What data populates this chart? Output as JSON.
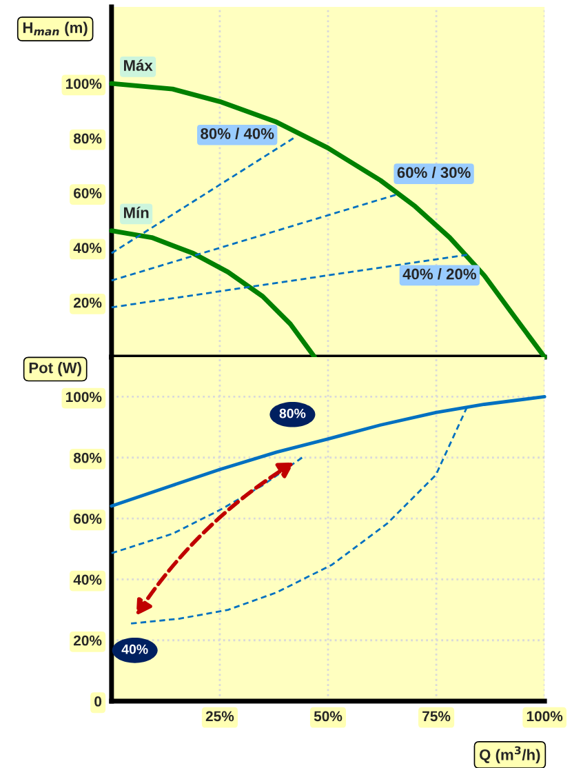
{
  "chart_data": [
    {
      "type": "line",
      "ylabel": "H$_{man}$ (m)",
      "xlim": [
        0,
        100
      ],
      "ylim": [
        0,
        128
      ],
      "xticks": [
        {
          "value": 25,
          "label": null
        },
        {
          "value": 50,
          "label": null
        },
        {
          "value": 75,
          "label": null
        },
        {
          "value": 100,
          "label": null
        }
      ],
      "yticks": [
        {
          "value": 20,
          "label": "20%"
        },
        {
          "value": 40,
          "label": "40%"
        },
        {
          "value": 60,
          "label": "60%"
        },
        {
          "value": 80,
          "label": "80%"
        },
        {
          "value": 100,
          "label": "100%"
        }
      ],
      "tick_labels": "y",
      "grid": "x",
      "marker": "none",
      "series": [
        {
          "name": "Máx",
          "color": "#008000",
          "line_style": "solid",
          "x": [
            0,
            14.1,
            25,
            38.1,
            49.9,
            62.1,
            70.1,
            78.1,
            86.1,
            92.5,
            100
          ],
          "values": [
            100,
            98,
            93.4,
            85.9,
            76.5,
            64.6,
            55.1,
            43.7,
            29.8,
            16,
            0
          ]
        },
        {
          "name": "Mín",
          "color": "#008000",
          "line_style": "solid",
          "x": [
            0,
            9.3,
            18.9,
            26.9,
            34.9,
            41.3,
            46.9
          ],
          "values": [
            46.2,
            43.7,
            37.9,
            31.1,
            22.2,
            12.1,
            0
          ]
        },
        {
          "name": "80% / 40%",
          "color": "#0070c0",
          "line_style": "dashed",
          "x": [
            0,
            42
          ],
          "values": [
            38,
            80
          ]
        },
        {
          "name": "60% / 30%",
          "color": "#0070c0",
          "line_style": "dashed",
          "x": [
            0,
            65.6
          ],
          "values": [
            28,
            59.3
          ]
        },
        {
          "name": "40% / 20%",
          "color": "#0070c0",
          "line_style": "dashed",
          "x": [
            0,
            82.1
          ],
          "values": [
            18.2,
            37.4
          ]
        }
      ]
    },
    {
      "type": "line",
      "ylabel": "Pot (W)",
      "xlabel": "Q (m$^{3}$/h)",
      "xlim": [
        0,
        100
      ],
      "ylim": [
        0,
        113
      ],
      "xticks": [
        {
          "value": 25,
          "label": "25%"
        },
        {
          "value": 50,
          "label": "50%"
        },
        {
          "value": 75,
          "label": "75%"
        },
        {
          "value": 100,
          "label": "100%"
        }
      ],
      "yticks": [
        0,
        {
          "value": 20,
          "label": "20%"
        },
        {
          "value": 40,
          "label": "40%"
        },
        {
          "value": 60,
          "label": "60%"
        },
        {
          "value": 80,
          "label": "80%"
        },
        {
          "value": 100,
          "label": "100%"
        }
      ],
      "grid": true,
      "marker": "none",
      "series": [
        {
          "color": "#0070c0",
          "line_style": "solid",
          "x": [
            0,
            14.1,
            25,
            38.1,
            49.9,
            62.1,
            74.9,
            86.1,
            100
          ],
          "values": [
            64.1,
            70.9,
            76.1,
            81.8,
            86.1,
            90.7,
            94.8,
            97.5,
            100
          ]
        },
        {
          "color": "#0070c0",
          "line_style": "dashed",
          "x": [
            0,
            14.1,
            25.3,
            34.9,
            44
          ],
          "values": [
            48.6,
            55,
            63,
            70.9,
            80
          ]
        },
        {
          "color": "#0070c0",
          "line_style": "dashed",
          "x": [
            4.5,
            15.7,
            26.9,
            38.1,
            50.9,
            63.7,
            74.9,
            82.1
          ],
          "values": [
            25.5,
            27.1,
            30,
            35.7,
            44.8,
            58.4,
            74.3,
            96.6
          ]
        }
      ],
      "annotations": [
        {
          "text": "80%",
          "x": 44,
          "y": 80
        },
        {
          "text": "40%",
          "x": 4.5,
          "y": 25.5
        }
      ]
    }
  ]
}
